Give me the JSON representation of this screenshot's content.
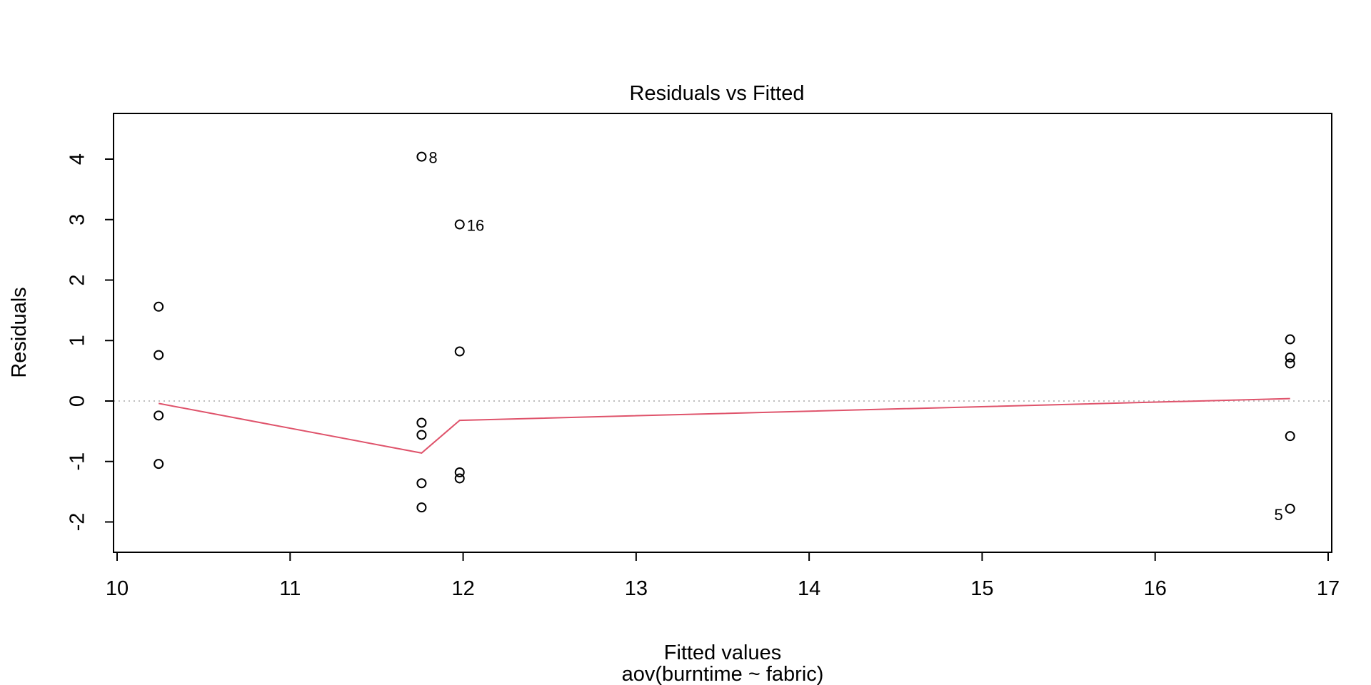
{
  "chart_data": {
    "type": "scatter",
    "title": "Residuals vs Fitted",
    "xlabel": "Fitted values",
    "sublabel": "aov(burntime ~ fabric)",
    "ylabel": "Residuals",
    "xlim": [
      10,
      17
    ],
    "ylim": [
      -2.5,
      4.7
    ],
    "xticks": [
      10,
      11,
      12,
      13,
      14,
      15,
      16,
      17
    ],
    "yticks": [
      -2,
      -1,
      0,
      1,
      2,
      3,
      4
    ],
    "reference_line_y": 0,
    "points": [
      {
        "x": 10.24,
        "y": 1.56
      },
      {
        "x": 10.24,
        "y": 0.76
      },
      {
        "x": 10.24,
        "y": -0.24
      },
      {
        "x": 10.24,
        "y": -1.04
      },
      {
        "x": 11.76,
        "y": 4.04,
        "label": "8"
      },
      {
        "x": 11.76,
        "y": -0.36
      },
      {
        "x": 11.76,
        "y": -0.56
      },
      {
        "x": 11.76,
        "y": -1.36
      },
      {
        "x": 11.76,
        "y": -1.76
      },
      {
        "x": 11.98,
        "y": 2.92,
        "label": "16"
      },
      {
        "x": 11.98,
        "y": 0.82
      },
      {
        "x": 11.98,
        "y": -1.18
      },
      {
        "x": 11.98,
        "y": -1.28
      },
      {
        "x": 16.78,
        "y": 1.02
      },
      {
        "x": 16.78,
        "y": 0.72
      },
      {
        "x": 16.78,
        "y": 0.62
      },
      {
        "x": 16.78,
        "y": -0.58
      },
      {
        "x": 16.78,
        "y": -1.78,
        "label": "5"
      }
    ],
    "smoother": [
      {
        "x": 10.24,
        "y": -0.04
      },
      {
        "x": 11.76,
        "y": -0.86
      },
      {
        "x": 11.98,
        "y": -0.32
      },
      {
        "x": 16.78,
        "y": 0.04
      }
    ],
    "colors": {
      "smoother": "#DF536B",
      "reference": "#BEBEBE",
      "points": "#000000"
    }
  }
}
